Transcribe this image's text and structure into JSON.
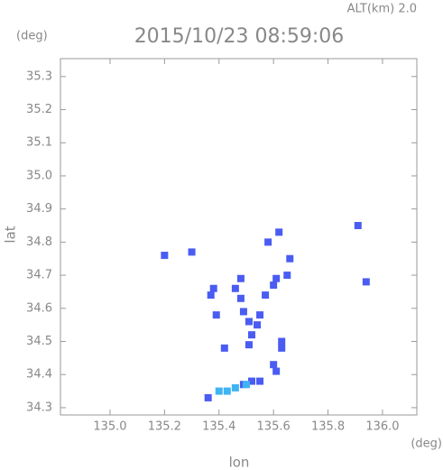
{
  "chart_data": {
    "type": "scatter",
    "title": "2015/10/23 08:59:06",
    "altitude_label": "ALT(km) 2.0",
    "y_unit": "(deg)",
    "x_unit": "(deg)",
    "xlabel": "lon",
    "ylabel": "lat",
    "xlim": [
      134.818,
      136.126
    ],
    "ylim": [
      34.278,
      35.354
    ],
    "xticks": [
      {
        "value": 135,
        "label": "135.0"
      },
      135.2,
      135.4,
      135.6,
      135.8,
      {
        "value": 136,
        "label": "136.0"
      }
    ],
    "yticks": [
      34.3,
      34.4,
      34.5,
      34.6,
      34.7,
      34.8,
      34.9,
      {
        "value": 35,
        "label": "35.0"
      },
      35.1,
      35.2,
      35.3
    ],
    "series": [
      {
        "color": "#4a5cf2",
        "x": [
          135.2,
          135.3,
          135.38,
          135.37,
          135.46,
          135.48,
          135.39,
          135.48,
          135.49,
          135.51,
          135.54,
          135.55,
          135.52,
          135.51,
          135.57,
          135.6,
          135.61,
          135.58,
          135.62,
          135.66,
          135.65,
          135.91,
          135.94,
          135.63,
          135.63,
          135.6,
          135.61,
          135.42,
          135.55,
          135.52,
          135.49,
          135.36
        ],
        "y": [
          34.76,
          34.77,
          34.66,
          34.64,
          34.66,
          34.69,
          34.58,
          34.63,
          34.59,
          34.56,
          34.55,
          34.58,
          34.52,
          34.49,
          34.64,
          34.67,
          34.69,
          34.8,
          34.83,
          34.75,
          34.7,
          34.85,
          34.68,
          34.5,
          34.48,
          34.43,
          34.41,
          34.48,
          34.38,
          34.38,
          34.37,
          34.33
        ]
      },
      {
        "color": "#3fb4f2",
        "x": [
          135.4,
          135.43,
          135.46,
          135.5
        ],
        "y": [
          34.35,
          34.35,
          34.36,
          34.37
        ]
      }
    ]
  }
}
